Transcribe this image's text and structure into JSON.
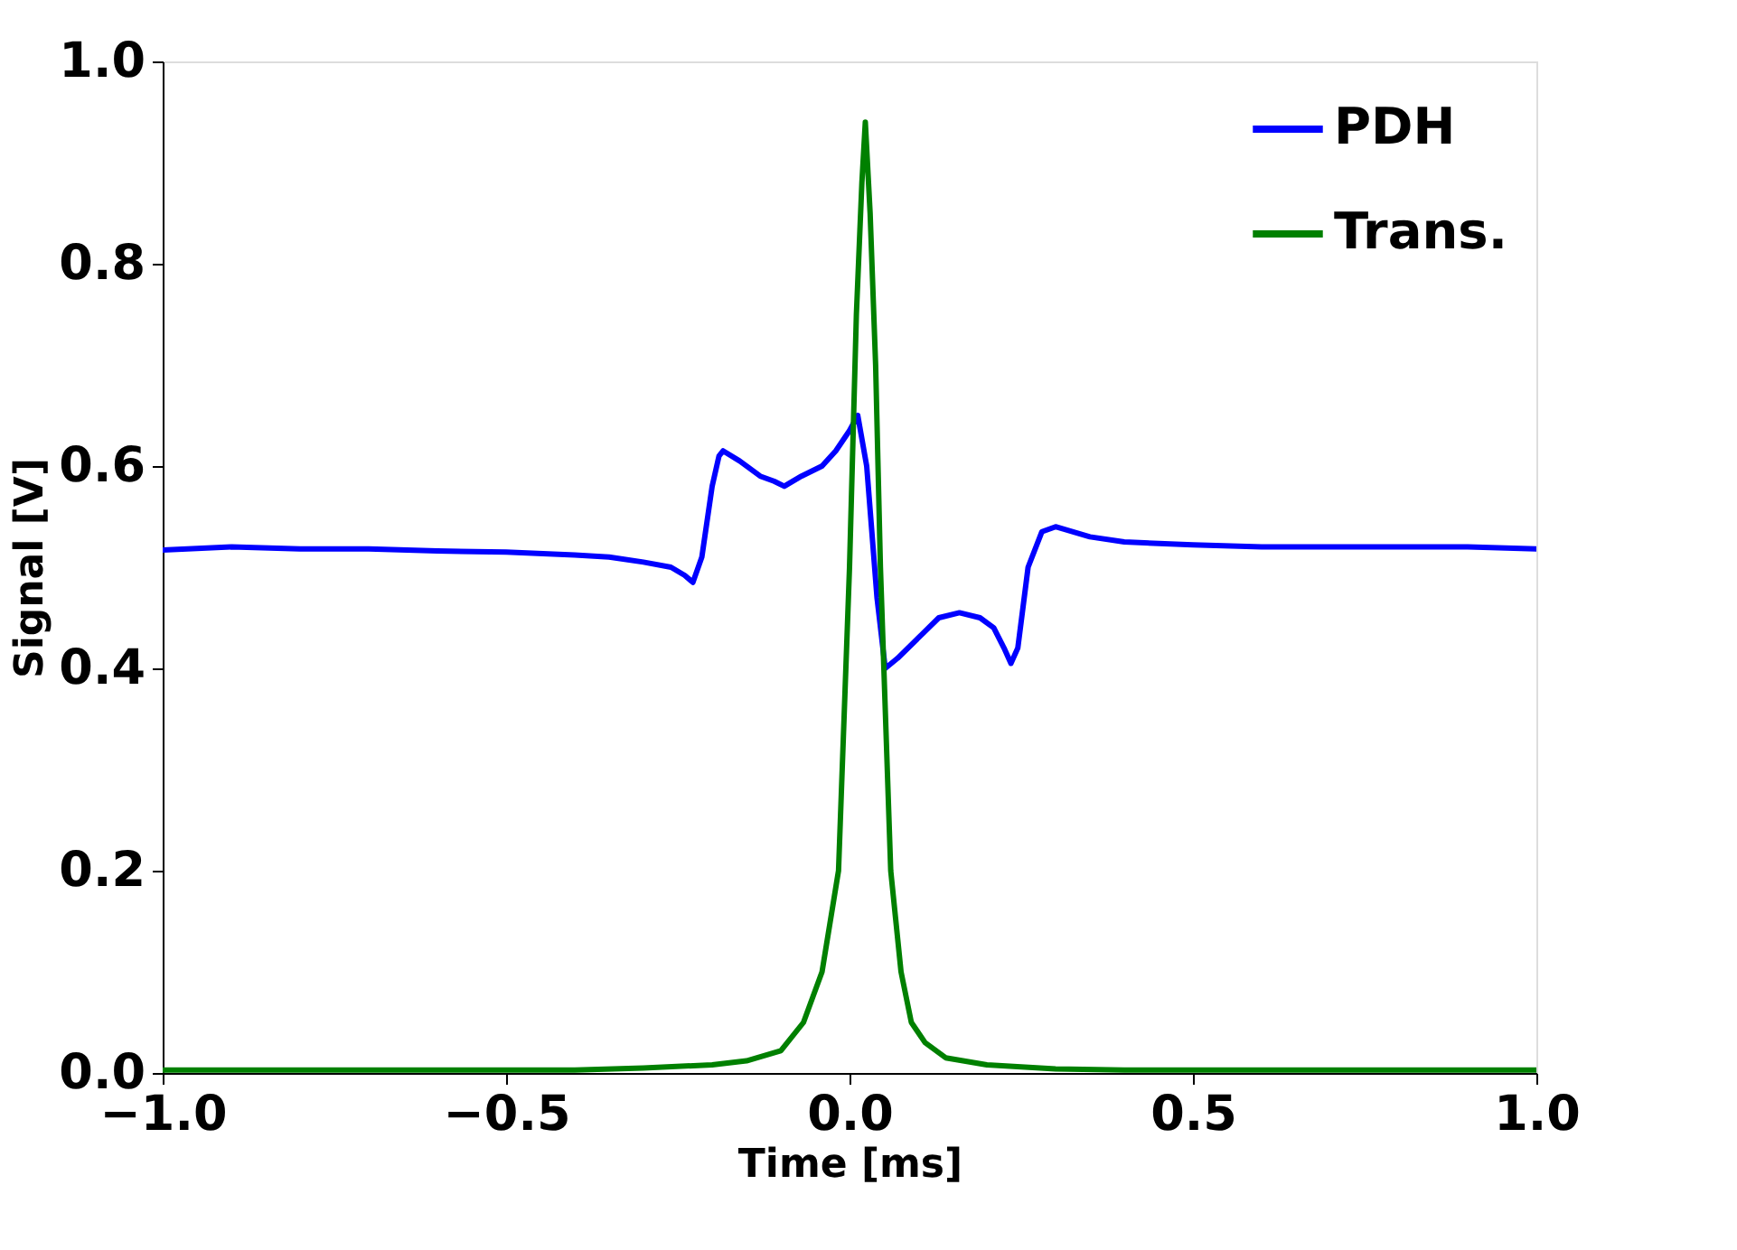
{
  "chart_data": {
    "type": "line",
    "xlabel": "Time [ms]",
    "ylabel": "Signal [V]",
    "xlim": [
      -1.0,
      1.0
    ],
    "xticks": [
      {
        "value": -1.0,
        "label": "−1.0"
      },
      {
        "value": -0.5,
        "label": "−0.5"
      },
      {
        "value": 0.0,
        "label": "0.0"
      },
      {
        "value": 0.5,
        "label": "0.5"
      },
      {
        "value": 1.0,
        "label": "1.0"
      }
    ],
    "ylim": [
      0.0,
      1.0
    ],
    "yticks": [
      {
        "value": 0.0,
        "label": "0.0"
      },
      {
        "value": 0.2,
        "label": "0.2"
      },
      {
        "value": 0.4,
        "label": "0.4"
      },
      {
        "value": 0.6,
        "label": "0.6"
      },
      {
        "value": 0.8,
        "label": "0.8"
      },
      {
        "value": 1.0,
        "label": "1.0"
      }
    ],
    "grid": false,
    "legend": "top right",
    "line_style": "solid",
    "series": [
      {
        "name": "PDH",
        "color": "#0000ff",
        "x": [
          -1.0,
          -0.9,
          -0.8,
          -0.7,
          -0.6,
          -0.5,
          -0.4,
          -0.35,
          -0.3,
          -0.26,
          -0.24,
          -0.228,
          -0.215,
          -0.2,
          -0.19,
          -0.184,
          -0.16,
          -0.13,
          -0.11,
          -0.095,
          -0.07,
          -0.04,
          -0.02,
          0.0,
          0.012,
          0.025,
          0.04,
          0.052,
          0.07,
          0.1,
          0.13,
          0.16,
          0.19,
          0.21,
          0.225,
          0.235,
          0.245,
          0.26,
          0.28,
          0.3,
          0.35,
          0.4,
          0.5,
          0.6,
          0.7,
          0.8,
          0.9,
          1.0
        ],
        "values": [
          0.517,
          0.52,
          0.518,
          0.518,
          0.516,
          0.515,
          0.512,
          0.51,
          0.505,
          0.5,
          0.492,
          0.485,
          0.51,
          0.58,
          0.61,
          0.615,
          0.605,
          0.59,
          0.585,
          0.58,
          0.59,
          0.6,
          0.615,
          0.635,
          0.65,
          0.6,
          0.47,
          0.4,
          0.41,
          0.43,
          0.45,
          0.455,
          0.45,
          0.44,
          0.42,
          0.405,
          0.42,
          0.5,
          0.535,
          0.54,
          0.53,
          0.525,
          0.522,
          0.52,
          0.52,
          0.52,
          0.52,
          0.518
        ]
      },
      {
        "name": "Trans.",
        "color": "#008000",
        "x": [
          -1.0,
          -0.8,
          -0.6,
          -0.4,
          -0.3,
          -0.2,
          -0.15,
          -0.1,
          -0.067,
          -0.04,
          -0.016,
          0.0,
          0.01,
          0.018,
          0.023,
          0.03,
          0.038,
          0.045,
          0.06,
          0.075,
          0.09,
          0.11,
          0.14,
          0.2,
          0.3,
          0.4,
          0.6,
          0.8,
          1.0
        ],
        "values": [
          0.003,
          0.003,
          0.003,
          0.003,
          0.005,
          0.008,
          0.012,
          0.022,
          0.05,
          0.1,
          0.2,
          0.5,
          0.75,
          0.88,
          0.94,
          0.85,
          0.7,
          0.5,
          0.2,
          0.1,
          0.05,
          0.03,
          0.015,
          0.008,
          0.004,
          0.003,
          0.003,
          0.003,
          0.003
        ]
      }
    ]
  }
}
